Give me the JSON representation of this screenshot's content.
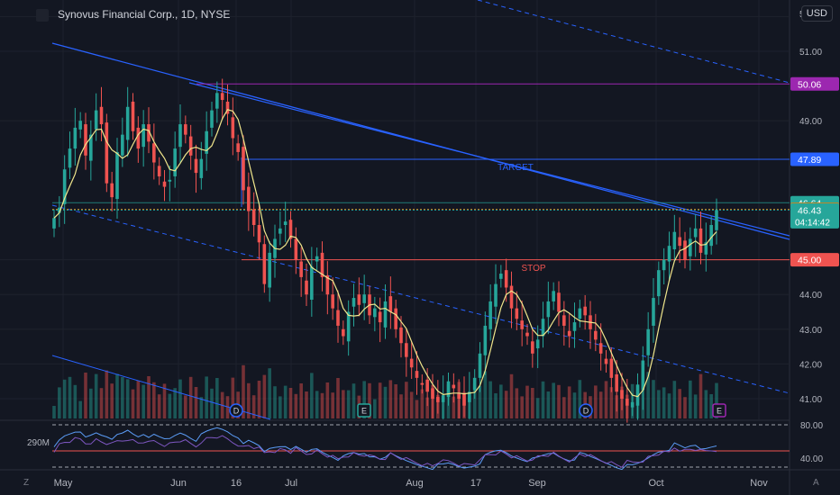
{
  "header": {
    "title": "Synovus Financial Corp., 1D, NYSE",
    "currency": "USD"
  },
  "footer": {
    "left": "Z",
    "right": "A"
  },
  "colors": {
    "up": "#26a69a",
    "down": "#ef5350",
    "ma": "#f0e68c",
    "rsi": "#7e57c2",
    "rsi2": "#5b9cf6",
    "trend": "#2962ff"
  },
  "chart_data": {
    "type": "candlestick",
    "title": "Synovus Financial Corp., 1D, NYSE",
    "x_ticks": [
      "May",
      "Jun",
      "16",
      "Jul",
      "Aug",
      "17",
      "Sep",
      "Oct",
      "Nov"
    ],
    "y_ticks": [
      "41.00",
      "42.00",
      "43.00",
      "44.00",
      "45.00",
      "49.00",
      "51.00",
      "52.00"
    ],
    "ylim": [
      40.5,
      52
    ],
    "price_labels": [
      {
        "value": 50.06,
        "text": "50.06",
        "color": "#9c27b0"
      },
      {
        "value": 47.89,
        "text": "47.89",
        "color": "#2962ff"
      },
      {
        "value": 46.64,
        "text": "46.64",
        "color": "#26a69a"
      },
      {
        "value": 46.45,
        "text": "46.45",
        "color": "#f57c00"
      },
      {
        "value": 46.43,
        "text": "46.43",
        "sub": "04:14:42",
        "color": "#26a69a"
      },
      {
        "value": 45.0,
        "text": "45.00",
        "color": "#ef5350"
      }
    ],
    "annotations": [
      {
        "text": "TARGET",
        "value": 47.89,
        "color": "#2962ff"
      },
      {
        "text": "STOP",
        "value": 45.0,
        "color": "#ef5350"
      }
    ],
    "event_markers": [
      {
        "label": "D",
        "x": "Jun 16"
      },
      {
        "label": "E",
        "x": "Jul"
      },
      {
        "label": "D",
        "x": "Sep"
      },
      {
        "label": "E",
        "x": "Oct"
      }
    ],
    "volume_label": "290M",
    "rsi_ticks": [
      "80.00",
      "40.00"
    ],
    "closes": [
      46.2,
      46.5,
      47.6,
      48.2,
      48.8,
      49.0,
      48.0,
      48.6,
      49.3,
      48.9,
      47.2,
      46.8,
      48.1,
      48.6,
      49.4,
      48.7,
      48.2,
      48.9,
      48.4,
      47.8,
      47.4,
      47.1,
      47.3,
      48.2,
      48.9,
      48.6,
      48.0,
      47.5,
      47.9,
      48.7,
      49.3,
      49.8,
      49.6,
      49.2,
      48.5,
      48.1,
      47.0,
      46.4,
      46.0,
      45.5,
      44.3,
      45.2,
      45.6,
      45.9,
      46.1,
      45.6,
      45.0,
      44.5,
      44.0,
      44.8,
      45.1,
      44.5,
      44.0,
      43.6,
      43.1,
      42.8,
      43.5,
      43.9,
      43.7,
      44.0,
      43.4,
      43.6,
      43.2,
      43.8,
      43.5,
      43.0,
      42.6,
      42.2,
      41.9,
      41.6,
      41.4,
      41.2,
      41.0,
      40.9,
      41.1,
      41.5,
      41.3,
      41.0,
      40.8,
      41.2,
      41.6,
      42.3,
      43.1,
      43.8,
      44.3,
      44.6,
      44.2,
      43.6,
      43.3,
      43.0,
      42.8,
      42.3,
      42.7,
      43.3,
      43.8,
      44.1,
      43.5,
      43.1,
      42.8,
      43.2,
      43.6,
      43.4,
      43.0,
      42.7,
      42.3,
      42.0,
      41.6,
      41.2,
      41.0,
      40.8,
      40.9,
      41.4,
      42.1,
      43.0,
      43.9,
      44.7,
      45.0,
      45.4,
      45.8,
      45.4,
      45.0,
      45.6,
      45.9,
      45.2,
      45.5,
      46.0,
      46.43
    ]
  }
}
